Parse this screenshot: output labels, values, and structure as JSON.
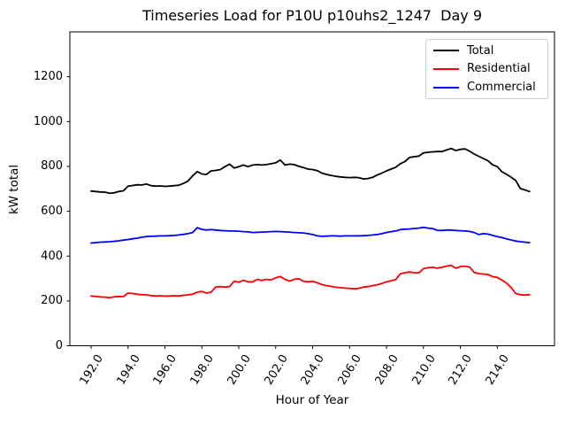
{
  "figure": {
    "title": "Timeseries Load for P10U p10uhs2_1247  Day 9",
    "xlabel": "Hour of Year",
    "ylabel": "kW total",
    "background": "#ffffff",
    "axis_color": "#000000"
  },
  "chart_data": {
    "type": "line",
    "title": "Timeseries Load for P10U p10uhs2_1247  Day 9",
    "xlabel": "Hour of Year",
    "ylabel": "kW total",
    "x_start": 192.0,
    "x_step": 0.25,
    "x_end": 215.75,
    "xlim": [
      190.85,
      217.1
    ],
    "ylim": [
      0,
      1400
    ],
    "grid": false,
    "legend": {
      "position": "upper right",
      "entries": [
        "Total",
        "Residential",
        "Commercial"
      ]
    },
    "xticks": {
      "values": [
        192,
        194,
        196,
        198,
        200,
        202,
        204,
        206,
        208,
        210,
        212,
        214
      ],
      "labels": [
        "192.0",
        "194.0",
        "196.0",
        "198.0",
        "200.0",
        "202.0",
        "204.0",
        "206.0",
        "208.0",
        "210.0",
        "212.0",
        "214.0"
      ]
    },
    "yticks": {
      "values": [
        0,
        200,
        400,
        600,
        800,
        1000,
        1200
      ],
      "labels": [
        "0",
        "200",
        "400",
        "600",
        "800",
        "1000",
        "1200"
      ]
    },
    "series": [
      {
        "name": "Total",
        "color": "#000000",
        "values": [
          690,
          688,
          686,
          685,
          680,
          682,
          688,
          691,
          712,
          715,
          718,
          717,
          721,
          714,
          712,
          713,
          711,
          712,
          714,
          716,
          724,
          735,
          758,
          777,
          766,
          764,
          780,
          782,
          786,
          799,
          810,
          793,
          799,
          806,
          799,
          806,
          808,
          806,
          808,
          812,
          816,
          828,
          806,
          810,
          808,
          800,
          795,
          788,
          786,
          781,
          770,
          764,
          760,
          756,
          753,
          751,
          750,
          751,
          750,
          744,
          746,
          751,
          762,
          770,
          780,
          788,
          796,
          812,
          822,
          840,
          843,
          846,
          860,
          863,
          865,
          866,
          866,
          873,
          880,
          871,
          876,
          878,
          868,
          855,
          845,
          835,
          825,
          807,
          799,
          776,
          765,
          752,
          737,
          701,
          695,
          688
        ]
      },
      {
        "name": "Residential",
        "color": "#ff0000",
        "values": [
          222,
          220,
          218,
          217,
          214,
          218,
          220,
          219,
          235,
          233,
          230,
          228,
          227,
          224,
          222,
          223,
          221,
          222,
          223,
          222,
          225,
          227,
          230,
          239,
          242,
          235,
          239,
          262,
          264,
          262,
          264,
          288,
          283,
          292,
          285,
          285,
          296,
          291,
          296,
          294,
          303,
          309,
          296,
          288,
          296,
          299,
          288,
          285,
          287,
          281,
          273,
          268,
          265,
          261,
          259,
          257,
          256,
          254,
          256,
          262,
          264,
          268,
          272,
          278,
          285,
          290,
          295,
          321,
          326,
          329,
          326,
          325,
          344,
          348,
          350,
          346,
          350,
          355,
          359,
          346,
          353,
          355,
          351,
          327,
          322,
          320,
          318,
          308,
          305,
          293,
          280,
          260,
          233,
          228,
          226,
          228
        ]
      },
      {
        "name": "Commercial",
        "color": "#0000ff",
        "values": [
          458,
          460,
          462,
          463,
          464,
          466,
          468,
          471,
          474,
          477,
          480,
          484,
          487,
          488,
          489,
          490,
          490,
          491,
          492,
          494,
          497,
          500,
          505,
          527,
          519,
          516,
          518,
          516,
          514,
          513,
          512,
          512,
          511,
          509,
          508,
          505,
          506,
          507,
          508,
          509,
          510,
          509,
          508,
          507,
          505,
          504,
          503,
          500,
          496,
          490,
          488,
          489,
          490,
          490,
          489,
          490,
          490,
          490,
          490,
          491,
          492,
          494,
          496,
          500,
          505,
          509,
          512,
          518,
          520,
          521,
          523,
          525,
          528,
          525,
          523,
          515,
          514,
          516,
          516,
          514,
          513,
          512,
          510,
          505,
          496,
          500,
          498,
          492,
          487,
          483,
          477,
          472,
          467,
          464,
          462,
          460
        ]
      }
    ]
  }
}
